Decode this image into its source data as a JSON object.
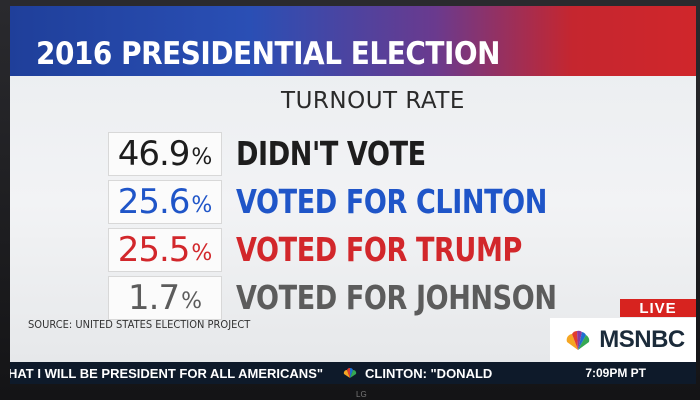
{
  "banner": {
    "title": "2016 PRESIDENTIAL ELECTION"
  },
  "subtitle": "TURNOUT RATE",
  "rows": [
    {
      "value": "46.9",
      "unit": "%",
      "label": "DIDN'T VOTE",
      "color": "#1d1d1d"
    },
    {
      "value": "25.6",
      "unit": "%",
      "label": "VOTED FOR CLINTON",
      "color": "#1f55c8"
    },
    {
      "value": "25.5",
      "unit": "%",
      "label": "VOTED FOR TRUMP",
      "color": "#d2272b"
    },
    {
      "value": "1.7",
      "unit": "%",
      "label": "VOTED FOR JOHNSON",
      "color": "#5c5c5c"
    }
  ],
  "source": "SOURCE: UNITED STATES ELECTION PROJECT",
  "live": "LIVE",
  "network": "MSNBC",
  "ticker": {
    "text1": "HAT I WILL BE PRESIDENT FOR ALL AMERICANS\"",
    "text2": "CLINTON: \"DONALD",
    "time": "7:09PM PT"
  },
  "tv_brand": "LG",
  "colors": {
    "banner_blue": "#1f3f9a",
    "banner_red": "#d0262b",
    "live_red": "#d7231f",
    "ticker_bg": "#0e1a2a"
  }
}
